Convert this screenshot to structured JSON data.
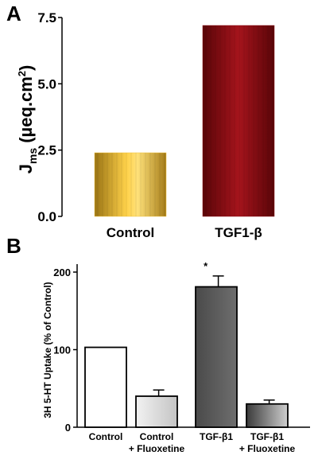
{
  "panels": {
    "a_letter": "A",
    "b_letter": "B"
  },
  "chart_data": [
    {
      "type": "bar",
      "panel": "A",
      "ylabel_main": "J",
      "ylabel_sub": "ms",
      "ylabel_rest": " (µeq.cm",
      "ylabel_sup": "2",
      "ylabel_close": ")",
      "ylim": [
        0,
        7.5
      ],
      "yticks": [
        "0.0",
        "2.5",
        "5.0",
        "7.5"
      ],
      "ytick_values": [
        0,
        2.5,
        5.0,
        7.5
      ],
      "categories": [
        "Control",
        "TGF1-β"
      ],
      "values": [
        2.4,
        7.2
      ],
      "colors": [
        "#f2c23a",
        "#8b0d14"
      ]
    },
    {
      "type": "bar",
      "panel": "B",
      "ylabel": "3H 5-HT Uptake (% of Control)",
      "ylim": [
        0,
        200
      ],
      "yticks": [
        "0",
        "100",
        "200"
      ],
      "ytick_values": [
        0,
        100,
        200
      ],
      "categories": [
        [
          "Control"
        ],
        [
          "Control",
          "+ Fluoxetine"
        ],
        [
          "TGF-β1"
        ],
        [
          "TGF-β1",
          "+ Fluoxetine"
        ]
      ],
      "values": [
        103,
        40,
        181,
        30
      ],
      "errors": [
        0,
        8,
        14,
        5
      ],
      "colors": [
        "#ffffff",
        "#d9d9d9",
        "#555555",
        "#7a7a7a"
      ],
      "annotation": "*",
      "annotation_bar_index": 2
    }
  ]
}
